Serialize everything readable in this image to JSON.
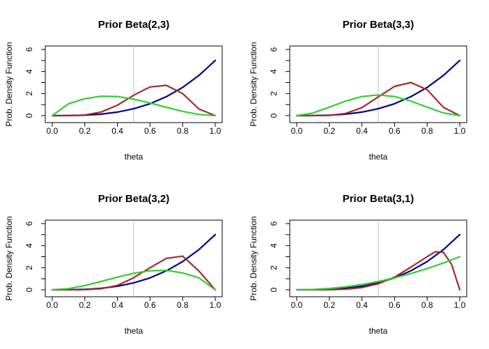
{
  "chart_data": [
    {
      "type": "line",
      "title": "Prior Beta(2,3)",
      "xlabel": "theta",
      "ylabel": "Prob. Density Function",
      "xlim": [
        0,
        1
      ],
      "ylim": [
        0,
        6
      ],
      "xticks": [
        "0.0",
        "0.2",
        "0.4",
        "0.6",
        "0.8",
        "1.0"
      ],
      "yticks": [
        "0",
        "2",
        "4",
        "6"
      ],
      "reference_line_x": 0.5,
      "series": [
        {
          "color": "#00008b",
          "x": [
            0,
            0.1,
            0.2,
            0.3,
            0.4,
            0.5,
            0.6,
            0.7,
            0.8,
            0.9,
            1.0
          ],
          "values": [
            0,
            0.005,
            0.04,
            0.135,
            0.32,
            0.625,
            1.08,
            1.715,
            2.56,
            3.645,
            5.0
          ]
        },
        {
          "color": "#a52a2a",
          "x": [
            0,
            0.1,
            0.2,
            0.3,
            0.4,
            0.5,
            0.6,
            0.7,
            0.8,
            0.9,
            1.0
          ],
          "values": [
            0,
            0.0,
            0.06,
            0.33,
            0.95,
            1.85,
            2.6,
            2.75,
            2.0,
            0.6,
            0
          ]
        },
        {
          "color": "#32cd32",
          "x": [
            0,
            0.1,
            0.2,
            0.3,
            0.4,
            0.5,
            0.6,
            0.7,
            0.8,
            0.9,
            1.0
          ],
          "values": [
            0,
            1.08,
            1.536,
            1.764,
            1.728,
            1.5,
            1.152,
            0.756,
            0.384,
            0.108,
            0
          ]
        }
      ]
    },
    {
      "type": "line",
      "title": "Prior Beta(3,3)",
      "xlabel": "theta",
      "ylabel": "Prob. Density Function",
      "xlim": [
        0,
        1
      ],
      "ylim": [
        0,
        6
      ],
      "xticks": [
        "0.0",
        "0.2",
        "0.4",
        "0.6",
        "0.8",
        "1.0"
      ],
      "yticks": [
        "0",
        "2",
        "4",
        "6"
      ],
      "reference_line_x": 0.5,
      "series": [
        {
          "color": "#00008b",
          "x": [
            0,
            0.1,
            0.2,
            0.3,
            0.4,
            0.5,
            0.6,
            0.7,
            0.8,
            0.9,
            1.0
          ],
          "values": [
            0,
            0.005,
            0.04,
            0.135,
            0.32,
            0.625,
            1.08,
            1.715,
            2.56,
            3.645,
            5.0
          ]
        },
        {
          "color": "#a52a2a",
          "x": [
            0,
            0.1,
            0.2,
            0.3,
            0.4,
            0.5,
            0.6,
            0.7,
            0.8,
            0.9,
            1.0
          ],
          "values": [
            0,
            0.0,
            0.02,
            0.2,
            0.72,
            1.7,
            2.65,
            3.0,
            2.35,
            0.75,
            0
          ]
        },
        {
          "color": "#32cd32",
          "x": [
            0,
            0.1,
            0.2,
            0.3,
            0.4,
            0.5,
            0.6,
            0.7,
            0.8,
            0.9,
            1.0
          ],
          "values": [
            0,
            0.243,
            0.768,
            1.323,
            1.728,
            1.875,
            1.728,
            1.323,
            0.768,
            0.243,
            0
          ]
        }
      ]
    },
    {
      "type": "line",
      "title": "Prior Beta(3,2)",
      "xlabel": "theta",
      "ylabel": "Prob. Density Function",
      "xlim": [
        0,
        1
      ],
      "ylim": [
        0,
        6
      ],
      "xticks": [
        "0.0",
        "0.2",
        "0.4",
        "0.6",
        "0.8",
        "1.0"
      ],
      "yticks": [
        "0",
        "2",
        "4",
        "6"
      ],
      "reference_line_x": 0.5,
      "series": [
        {
          "color": "#00008b",
          "x": [
            0,
            0.1,
            0.2,
            0.3,
            0.4,
            0.5,
            0.6,
            0.7,
            0.8,
            0.9,
            1.0
          ],
          "values": [
            0,
            0.005,
            0.04,
            0.135,
            0.32,
            0.625,
            1.08,
            1.715,
            2.56,
            3.645,
            5.0
          ]
        },
        {
          "color": "#a52a2a",
          "x": [
            0,
            0.1,
            0.2,
            0.3,
            0.4,
            0.5,
            0.6,
            0.7,
            0.8,
            0.9,
            1.0
          ],
          "values": [
            0,
            0.0,
            0.01,
            0.1,
            0.4,
            1.1,
            2.0,
            2.85,
            3.05,
            1.7,
            0
          ]
        },
        {
          "color": "#32cd32",
          "x": [
            0,
            0.1,
            0.2,
            0.3,
            0.4,
            0.5,
            0.6,
            0.7,
            0.8,
            0.9,
            1.0
          ],
          "values": [
            0,
            0.108,
            0.384,
            0.756,
            1.152,
            1.5,
            1.728,
            1.764,
            1.536,
            1.08,
            0
          ]
        }
      ]
    },
    {
      "type": "line",
      "title": "Prior Beta(3,1)",
      "xlabel": "theta",
      "ylabel": "Prob. Density Function",
      "xlim": [
        0,
        1
      ],
      "ylim": [
        0,
        6
      ],
      "xticks": [
        "0.0",
        "0.2",
        "0.4",
        "0.6",
        "0.8",
        "1.0"
      ],
      "yticks": [
        "0",
        "2",
        "4",
        "6"
      ],
      "reference_line_x": 0.5,
      "series": [
        {
          "color": "#00008b",
          "x": [
            0,
            0.1,
            0.2,
            0.3,
            0.4,
            0.5,
            0.6,
            0.7,
            0.8,
            0.9,
            1.0
          ],
          "values": [
            0,
            0.005,
            0.04,
            0.135,
            0.32,
            0.625,
            1.08,
            1.715,
            2.56,
            3.645,
            5.0
          ]
        },
        {
          "color": "#a52a2a",
          "x": [
            0,
            0.1,
            0.2,
            0.3,
            0.4,
            0.5,
            0.6,
            0.7,
            0.8,
            0.85,
            0.9,
            0.95,
            1.0
          ],
          "values": [
            0,
            0.0,
            0.005,
            0.05,
            0.2,
            0.55,
            1.15,
            2.05,
            3.0,
            3.45,
            3.4,
            2.3,
            0
          ]
        },
        {
          "color": "#32cd32",
          "x": [
            0,
            0.1,
            0.2,
            0.3,
            0.4,
            0.5,
            0.6,
            0.7,
            0.8,
            0.9,
            1.0
          ],
          "values": [
            0,
            0.03,
            0.12,
            0.27,
            0.48,
            0.75,
            1.08,
            1.47,
            1.92,
            2.43,
            3.0
          ]
        }
      ]
    }
  ]
}
